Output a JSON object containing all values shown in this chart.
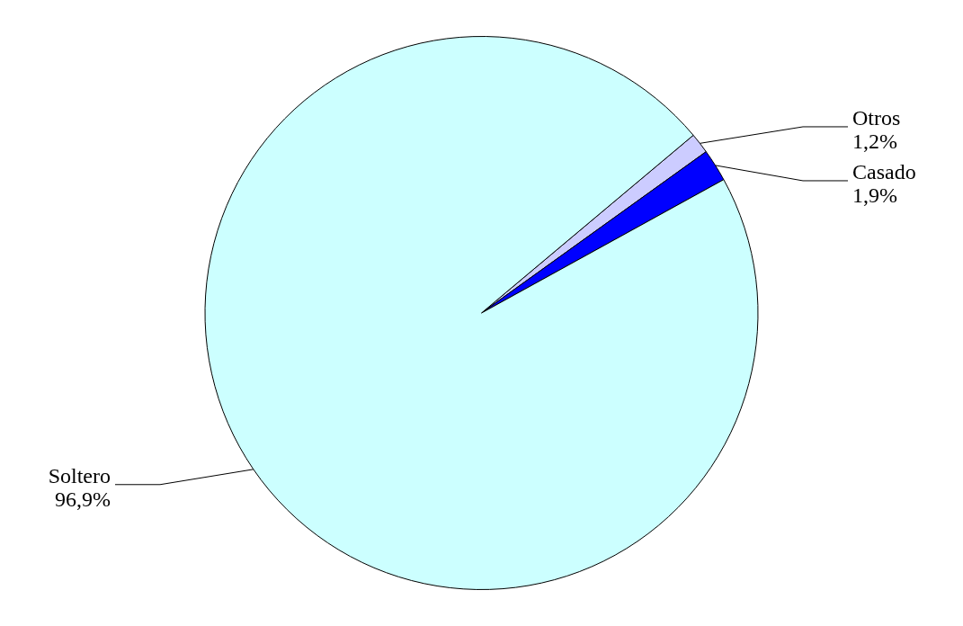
{
  "chart_data": {
    "type": "pie",
    "categories": [
      "Otros",
      "Casado",
      "Soltero"
    ],
    "values": [
      1.2,
      1.9,
      96.9
    ],
    "value_labels": [
      "1,2%",
      "1,9%",
      "96,9%"
    ],
    "colors": [
      "#ccccff",
      "#0000ff",
      "#ccffff"
    ],
    "legend": false
  }
}
